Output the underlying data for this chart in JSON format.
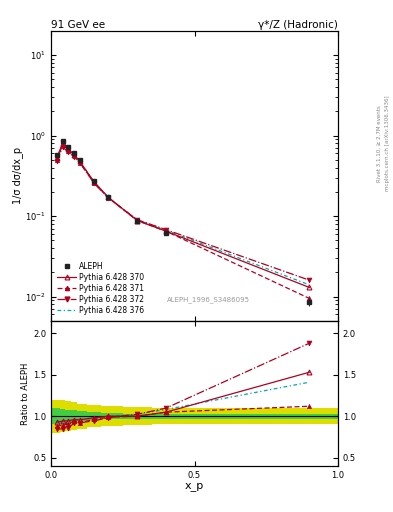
{
  "title_left": "91 GeV ee",
  "title_right": "γ*/Z (Hadronic)",
  "ylabel_main": "1/σ dσ/dx_p",
  "ylabel_ratio": "Ratio to ALEPH",
  "xlabel": "x_p",
  "right_label_top": "Rivet 3.1.10, ≥ 2.7M events",
  "right_label_bottom": "mcplots.cern.ch [arXiv:1306.3436]",
  "watermark": "ALEPH_1996_S3486095",
  "aleph_x": [
    0.02,
    0.04,
    0.06,
    0.08,
    0.1,
    0.15,
    0.2,
    0.3,
    0.4,
    0.9
  ],
  "aleph_y": [
    0.57,
    0.85,
    0.72,
    0.6,
    0.5,
    0.27,
    0.17,
    0.088,
    0.062,
    0.0085
  ],
  "aleph_yerr": [
    0.03,
    0.04,
    0.03,
    0.025,
    0.022,
    0.013,
    0.009,
    0.004,
    0.003,
    0.0008
  ],
  "p370_x": [
    0.02,
    0.04,
    0.06,
    0.08,
    0.1,
    0.15,
    0.2,
    0.3,
    0.4,
    0.9
  ],
  "p370_y": [
    0.53,
    0.8,
    0.68,
    0.575,
    0.478,
    0.265,
    0.17,
    0.088,
    0.065,
    0.013
  ],
  "p371_x": [
    0.02,
    0.04,
    0.06,
    0.08,
    0.1,
    0.15,
    0.2,
    0.3,
    0.4,
    0.9
  ],
  "p371_y": [
    0.5,
    0.76,
    0.65,
    0.565,
    0.46,
    0.26,
    0.168,
    0.088,
    0.065,
    0.0095
  ],
  "p372_x": [
    0.02,
    0.04,
    0.06,
    0.08,
    0.1,
    0.15,
    0.2,
    0.3,
    0.4,
    0.9
  ],
  "p372_y": [
    0.48,
    0.72,
    0.62,
    0.548,
    0.46,
    0.255,
    0.167,
    0.09,
    0.068,
    0.016
  ],
  "p376_x": [
    0.02,
    0.04,
    0.06,
    0.08,
    0.1,
    0.15,
    0.2,
    0.3,
    0.4,
    0.9
  ],
  "p376_y": [
    0.52,
    0.79,
    0.67,
    0.572,
    0.478,
    0.264,
    0.17,
    0.09,
    0.067,
    0.014
  ],
  "color_370": "#b00020",
  "color_371": "#b00020",
  "color_372": "#b00020",
  "color_376": "#00aaaa",
  "color_aleph": "#222222",
  "ratio_x": [
    0.02,
    0.04,
    0.06,
    0.08,
    0.1,
    0.15,
    0.2,
    0.3,
    0.4,
    0.9
  ],
  "ratio_370": [
    0.93,
    0.94,
    0.945,
    0.958,
    0.956,
    0.982,
    1.0,
    1.0,
    1.048,
    1.53
  ],
  "ratio_371": [
    0.877,
    0.894,
    0.903,
    0.942,
    0.92,
    0.963,
    0.988,
    1.0,
    1.048,
    1.12
  ],
  "ratio_372": [
    0.842,
    0.847,
    0.861,
    0.913,
    0.92,
    0.944,
    0.982,
    1.023,
    1.097,
    1.88
  ],
  "ratio_376": [
    0.912,
    0.929,
    0.93,
    0.953,
    0.956,
    0.978,
    1.0,
    1.023,
    1.081,
    1.41
  ],
  "band_x_edges": [
    0.0,
    0.03,
    0.05,
    0.07,
    0.09,
    0.125,
    0.175,
    0.25,
    0.35,
    0.7,
    1.0
  ],
  "band_yellow_lo": [
    0.82,
    0.8,
    0.81,
    0.82,
    0.83,
    0.85,
    0.87,
    0.88,
    0.89,
    0.9,
    0.9
  ],
  "band_yellow_hi": [
    1.18,
    1.2,
    1.19,
    1.18,
    1.17,
    1.15,
    1.13,
    1.12,
    1.11,
    1.1,
    1.1
  ],
  "band_green_lo": [
    0.92,
    0.9,
    0.91,
    0.92,
    0.93,
    0.94,
    0.95,
    0.96,
    0.97,
    0.97,
    0.97
  ],
  "band_green_hi": [
    1.08,
    1.1,
    1.09,
    1.08,
    1.07,
    1.06,
    1.05,
    1.04,
    1.03,
    1.03,
    1.03
  ],
  "band_yellow_color": "#dddd00",
  "band_green_color": "#44cc44",
  "ylim_main_lo": 0.005,
  "ylim_main_hi": 20.0,
  "ylim_ratio_lo": 0.4,
  "ylim_ratio_hi": 2.15,
  "xlim_lo": 0.0,
  "xlim_hi": 1.0
}
